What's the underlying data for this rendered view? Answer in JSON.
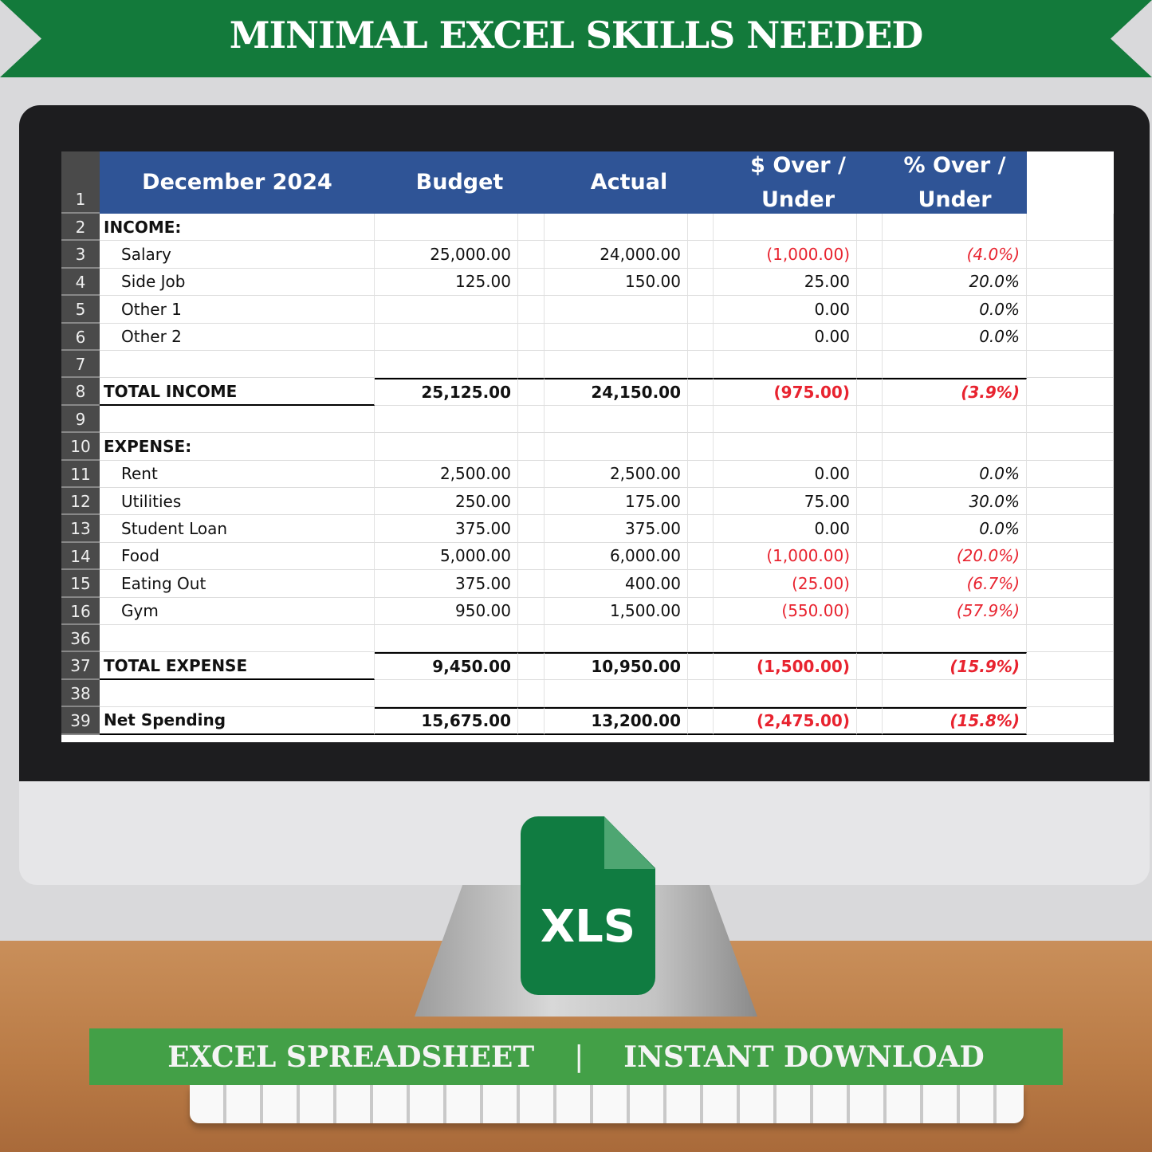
{
  "banner": {
    "title": "MINIMAL EXCEL SKILLS NEEDED",
    "color": "#137a3b"
  },
  "sheet": {
    "headers": [
      "December 2024",
      "Budget",
      "Actual",
      "$ Over / Under",
      "%  Over / Under"
    ],
    "header_row": "1",
    "header_color": "#2f5496",
    "negative_color": "#e8232f",
    "rows": [
      {
        "n": "2",
        "label": "INCOME:",
        "bold": true,
        "indent": false,
        "v": [
          "",
          "",
          "",
          ""
        ]
      },
      {
        "n": "3",
        "label": "Salary",
        "v": [
          "25,000.00",
          "24,000.00",
          "(1,000.00)",
          "(4.0%)"
        ],
        "neg": true
      },
      {
        "n": "4",
        "label": "Side Job",
        "v": [
          "125.00",
          "150.00",
          "25.00",
          "20.0%"
        ]
      },
      {
        "n": "5",
        "label": "Other 1",
        "v": [
          "",
          "",
          "0.00",
          "0.0%"
        ]
      },
      {
        "n": "6",
        "label": "Other 2",
        "v": [
          "",
          "",
          "0.00",
          "0.0%"
        ]
      },
      {
        "n": "7",
        "label": "",
        "v": [
          "",
          "",
          "",
          ""
        ]
      },
      {
        "n": "8",
        "label": "TOTAL INCOME",
        "bold": true,
        "total": true,
        "v": [
          "25,125.00",
          "24,150.00",
          "(975.00)",
          "(3.9%)"
        ],
        "neg": true
      },
      {
        "n": "9",
        "label": "",
        "v": [
          "",
          "",
          "",
          ""
        ]
      },
      {
        "n": "10",
        "label": "EXPENSE:",
        "bold": true,
        "v": [
          "",
          "",
          "",
          ""
        ]
      },
      {
        "n": "11",
        "label": "Rent",
        "v": [
          "2,500.00",
          "2,500.00",
          "0.00",
          "0.0%"
        ]
      },
      {
        "n": "12",
        "label": "Utilities",
        "v": [
          "250.00",
          "175.00",
          "75.00",
          "30.0%"
        ]
      },
      {
        "n": "13",
        "label": "Student Loan",
        "v": [
          "375.00",
          "375.00",
          "0.00",
          "0.0%"
        ]
      },
      {
        "n": "14",
        "label": "Food",
        "v": [
          "5,000.00",
          "6,000.00",
          "(1,000.00)",
          "(20.0%)"
        ],
        "neg": true
      },
      {
        "n": "15",
        "label": "Eating Out",
        "v": [
          "375.00",
          "400.00",
          "(25.00)",
          "(6.7%)"
        ],
        "neg": true
      },
      {
        "n": "16",
        "label": "Gym",
        "v": [
          "950.00",
          "1,500.00",
          "(550.00)",
          "(57.9%)"
        ],
        "neg": true
      },
      {
        "n": "36",
        "label": "",
        "v": [
          "",
          "",
          "",
          ""
        ]
      },
      {
        "n": "37",
        "label": "TOTAL EXPENSE",
        "bold": true,
        "total": true,
        "v": [
          "9,450.00",
          "10,950.00",
          "(1,500.00)",
          "(15.9%)"
        ],
        "neg": true
      },
      {
        "n": "38",
        "label": "",
        "v": [
          "",
          "",
          "",
          ""
        ]
      },
      {
        "n": "39",
        "label": "Net Spending",
        "bold": true,
        "total": true,
        "v": [
          "15,675.00",
          "13,200.00",
          "(2,475.00)",
          "(15.8%)"
        ],
        "neg": true
      }
    ]
  },
  "icon": {
    "name": "xls-file-icon",
    "label": "XLS",
    "color": "#107c41"
  },
  "footer": {
    "left": "EXCEL SPREADSHEET",
    "sep": "|",
    "right": "INSTANT DOWNLOAD",
    "color": "#43a047"
  }
}
